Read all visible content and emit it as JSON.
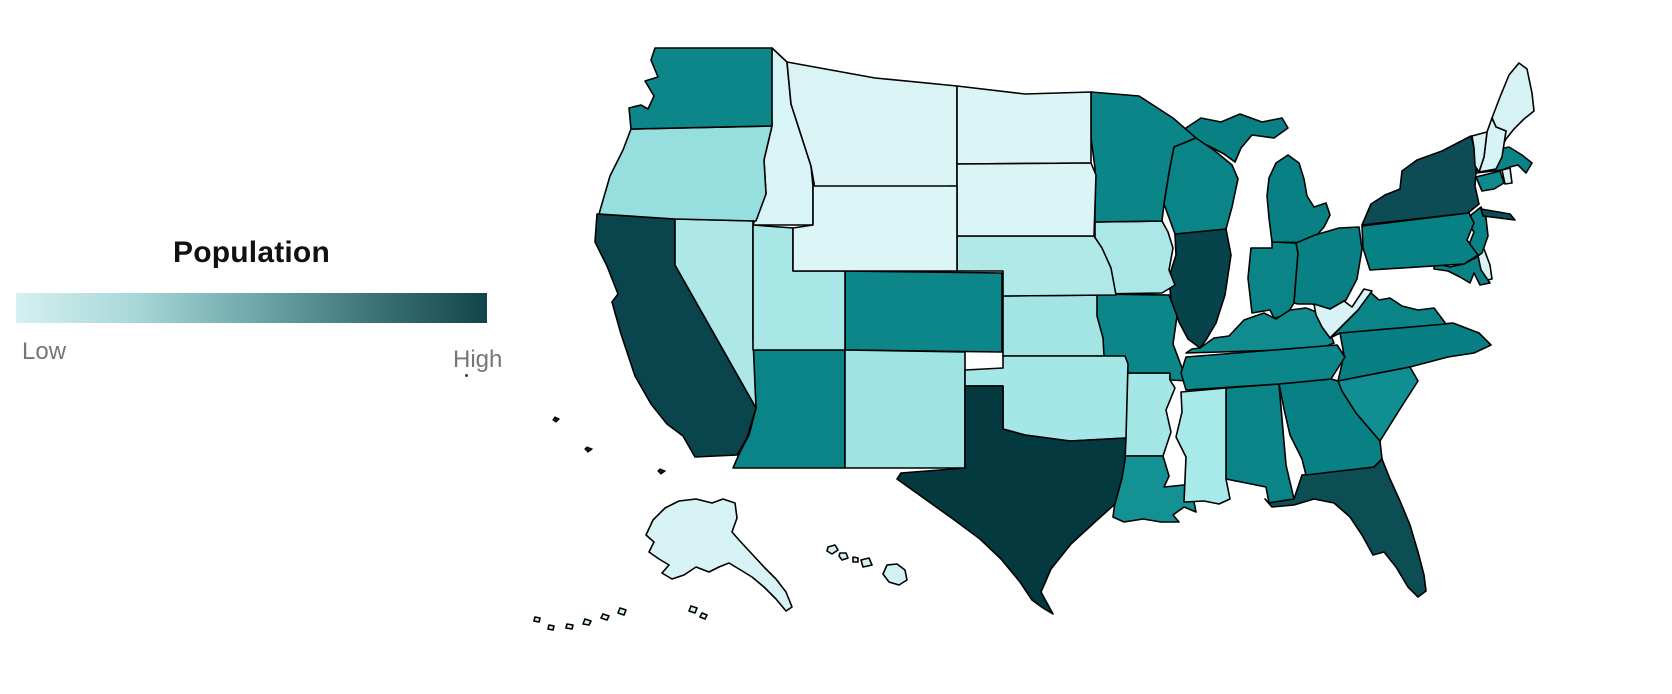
{
  "legend": {
    "title": "Population",
    "low_label": "Low",
    "high_label": "High",
    "title_color": "#111111",
    "label_color": "#767676",
    "gradient_stops": [
      "#d5f0f0",
      "#a8d8d8",
      "#6fa9ac",
      "#3d757b",
      "#12454b"
    ]
  },
  "map": {
    "stroke_color": "#000000",
    "background": "#ffffff"
  },
  "chart_data": {
    "type": "heatmap",
    "subtype": "choropleth-usa",
    "title": "Population",
    "legend_position": "left",
    "scale": {
      "min_label": "Low",
      "max_label": "High"
    },
    "palette": {
      "very-low": "#d8f3f5",
      "low": "#a5e6e6",
      "medium": "#0b8487",
      "high": "#0d4c54",
      "very-high": "#043940"
    },
    "states": [
      {
        "id": "AL",
        "name": "Alabama",
        "level": "medium",
        "fill": "#0b8487"
      },
      {
        "id": "AK",
        "name": "Alaska",
        "level": "very-low",
        "fill": "#d7f3f5"
      },
      {
        "id": "AZ",
        "name": "Arizona",
        "level": "medium",
        "fill": "#0b8487"
      },
      {
        "id": "AR",
        "name": "Arkansas",
        "level": "low",
        "fill": "#a5e6e6"
      },
      {
        "id": "CA",
        "name": "California",
        "level": "very-high",
        "fill": "#0a454d"
      },
      {
        "id": "CO",
        "name": "Colorado",
        "level": "medium",
        "fill": "#0c8689"
      },
      {
        "id": "CT",
        "name": "Connecticut",
        "level": "medium",
        "fill": "#0e8a8d"
      },
      {
        "id": "DE",
        "name": "Delaware",
        "level": "very-low",
        "fill": "#d7f3f5"
      },
      {
        "id": "FL",
        "name": "Florida",
        "level": "high",
        "fill": "#0d4e55"
      },
      {
        "id": "GA",
        "name": "Georgia",
        "level": "medium",
        "fill": "#098184"
      },
      {
        "id": "HI",
        "name": "Hawaii",
        "level": "very-low",
        "fill": "#d2f1f3"
      },
      {
        "id": "ID",
        "name": "Idaho",
        "level": "very-low",
        "fill": "#d9f4f6"
      },
      {
        "id": "IL",
        "name": "Illinois",
        "level": "high",
        "fill": "#07434b"
      },
      {
        "id": "IN",
        "name": "Indiana",
        "level": "medium",
        "fill": "#0b8487"
      },
      {
        "id": "IA",
        "name": "Iowa",
        "level": "low",
        "fill": "#abe7e7"
      },
      {
        "id": "KS",
        "name": "Kansas",
        "level": "low",
        "fill": "#a3e4e4"
      },
      {
        "id": "KY",
        "name": "Kentucky",
        "level": "medium",
        "fill": "#108c8f"
      },
      {
        "id": "LA",
        "name": "Louisiana",
        "level": "medium",
        "fill": "#149193"
      },
      {
        "id": "ME",
        "name": "Maine",
        "level": "very-low",
        "fill": "#d6f2f4"
      },
      {
        "id": "MD",
        "name": "Maryland",
        "level": "medium",
        "fill": "#0a8285"
      },
      {
        "id": "MA",
        "name": "Massachusetts",
        "level": "medium",
        "fill": "#0b8487"
      },
      {
        "id": "MI",
        "name": "Michigan",
        "level": "medium",
        "fill": "#098184"
      },
      {
        "id": "MN",
        "name": "Minnesota",
        "level": "medium",
        "fill": "#0b8588"
      },
      {
        "id": "MS",
        "name": "Mississippi",
        "level": "low",
        "fill": "#a8e9e9"
      },
      {
        "id": "MO",
        "name": "Missouri",
        "level": "medium",
        "fill": "#0c8689"
      },
      {
        "id": "MT",
        "name": "Montana",
        "level": "very-low",
        "fill": "#daf4f6"
      },
      {
        "id": "NE",
        "name": "Nebraska",
        "level": "low",
        "fill": "#b0e9e8"
      },
      {
        "id": "NV",
        "name": "Nevada",
        "level": "low",
        "fill": "#ade7e7"
      },
      {
        "id": "NH",
        "name": "New Hampshire",
        "level": "very-low",
        "fill": "#d8f3f5"
      },
      {
        "id": "NJ",
        "name": "New Jersey",
        "level": "medium",
        "fill": "#0a8386"
      },
      {
        "id": "NM",
        "name": "New Mexico",
        "level": "low",
        "fill": "#9fe3e3"
      },
      {
        "id": "NY",
        "name": "New York",
        "level": "high",
        "fill": "#0d4c54"
      },
      {
        "id": "NC",
        "name": "North Carolina",
        "level": "medium",
        "fill": "#088083"
      },
      {
        "id": "ND",
        "name": "North Dakota",
        "level": "very-low",
        "fill": "#dbf5f7"
      },
      {
        "id": "OH",
        "name": "Ohio",
        "level": "medium",
        "fill": "#098083"
      },
      {
        "id": "OK",
        "name": "Oklahoma",
        "level": "low",
        "fill": "#a5e6e6"
      },
      {
        "id": "OR",
        "name": "Oregon",
        "level": "low",
        "fill": "#97dfdf"
      },
      {
        "id": "PA",
        "name": "Pennsylvania",
        "level": "medium",
        "fill": "#088184"
      },
      {
        "id": "RI",
        "name": "Rhode Island",
        "level": "very-low",
        "fill": "#d8f3f5"
      },
      {
        "id": "SC",
        "name": "South Carolina",
        "level": "medium",
        "fill": "#118e91"
      },
      {
        "id": "SD",
        "name": "South Dakota",
        "level": "very-low",
        "fill": "#dbf5f7"
      },
      {
        "id": "TN",
        "name": "Tennessee",
        "level": "medium",
        "fill": "#0c8789"
      },
      {
        "id": "TX",
        "name": "Texas",
        "level": "very-high",
        "fill": "#043940"
      },
      {
        "id": "UT",
        "name": "Utah",
        "level": "low",
        "fill": "#a9e6e6"
      },
      {
        "id": "VT",
        "name": "Vermont",
        "level": "very-low",
        "fill": "#d8f3f5"
      },
      {
        "id": "VA",
        "name": "Virginia",
        "level": "medium",
        "fill": "#0a8486"
      },
      {
        "id": "WA",
        "name": "Washington",
        "level": "medium",
        "fill": "#0d8689"
      },
      {
        "id": "WV",
        "name": "West Virginia",
        "level": "very-low",
        "fill": "#d7f3f5"
      },
      {
        "id": "WI",
        "name": "Wisconsin",
        "level": "medium",
        "fill": "#0a8487"
      },
      {
        "id": "WY",
        "name": "Wyoming",
        "level": "very-low",
        "fill": "#dcf5f7"
      }
    ]
  }
}
